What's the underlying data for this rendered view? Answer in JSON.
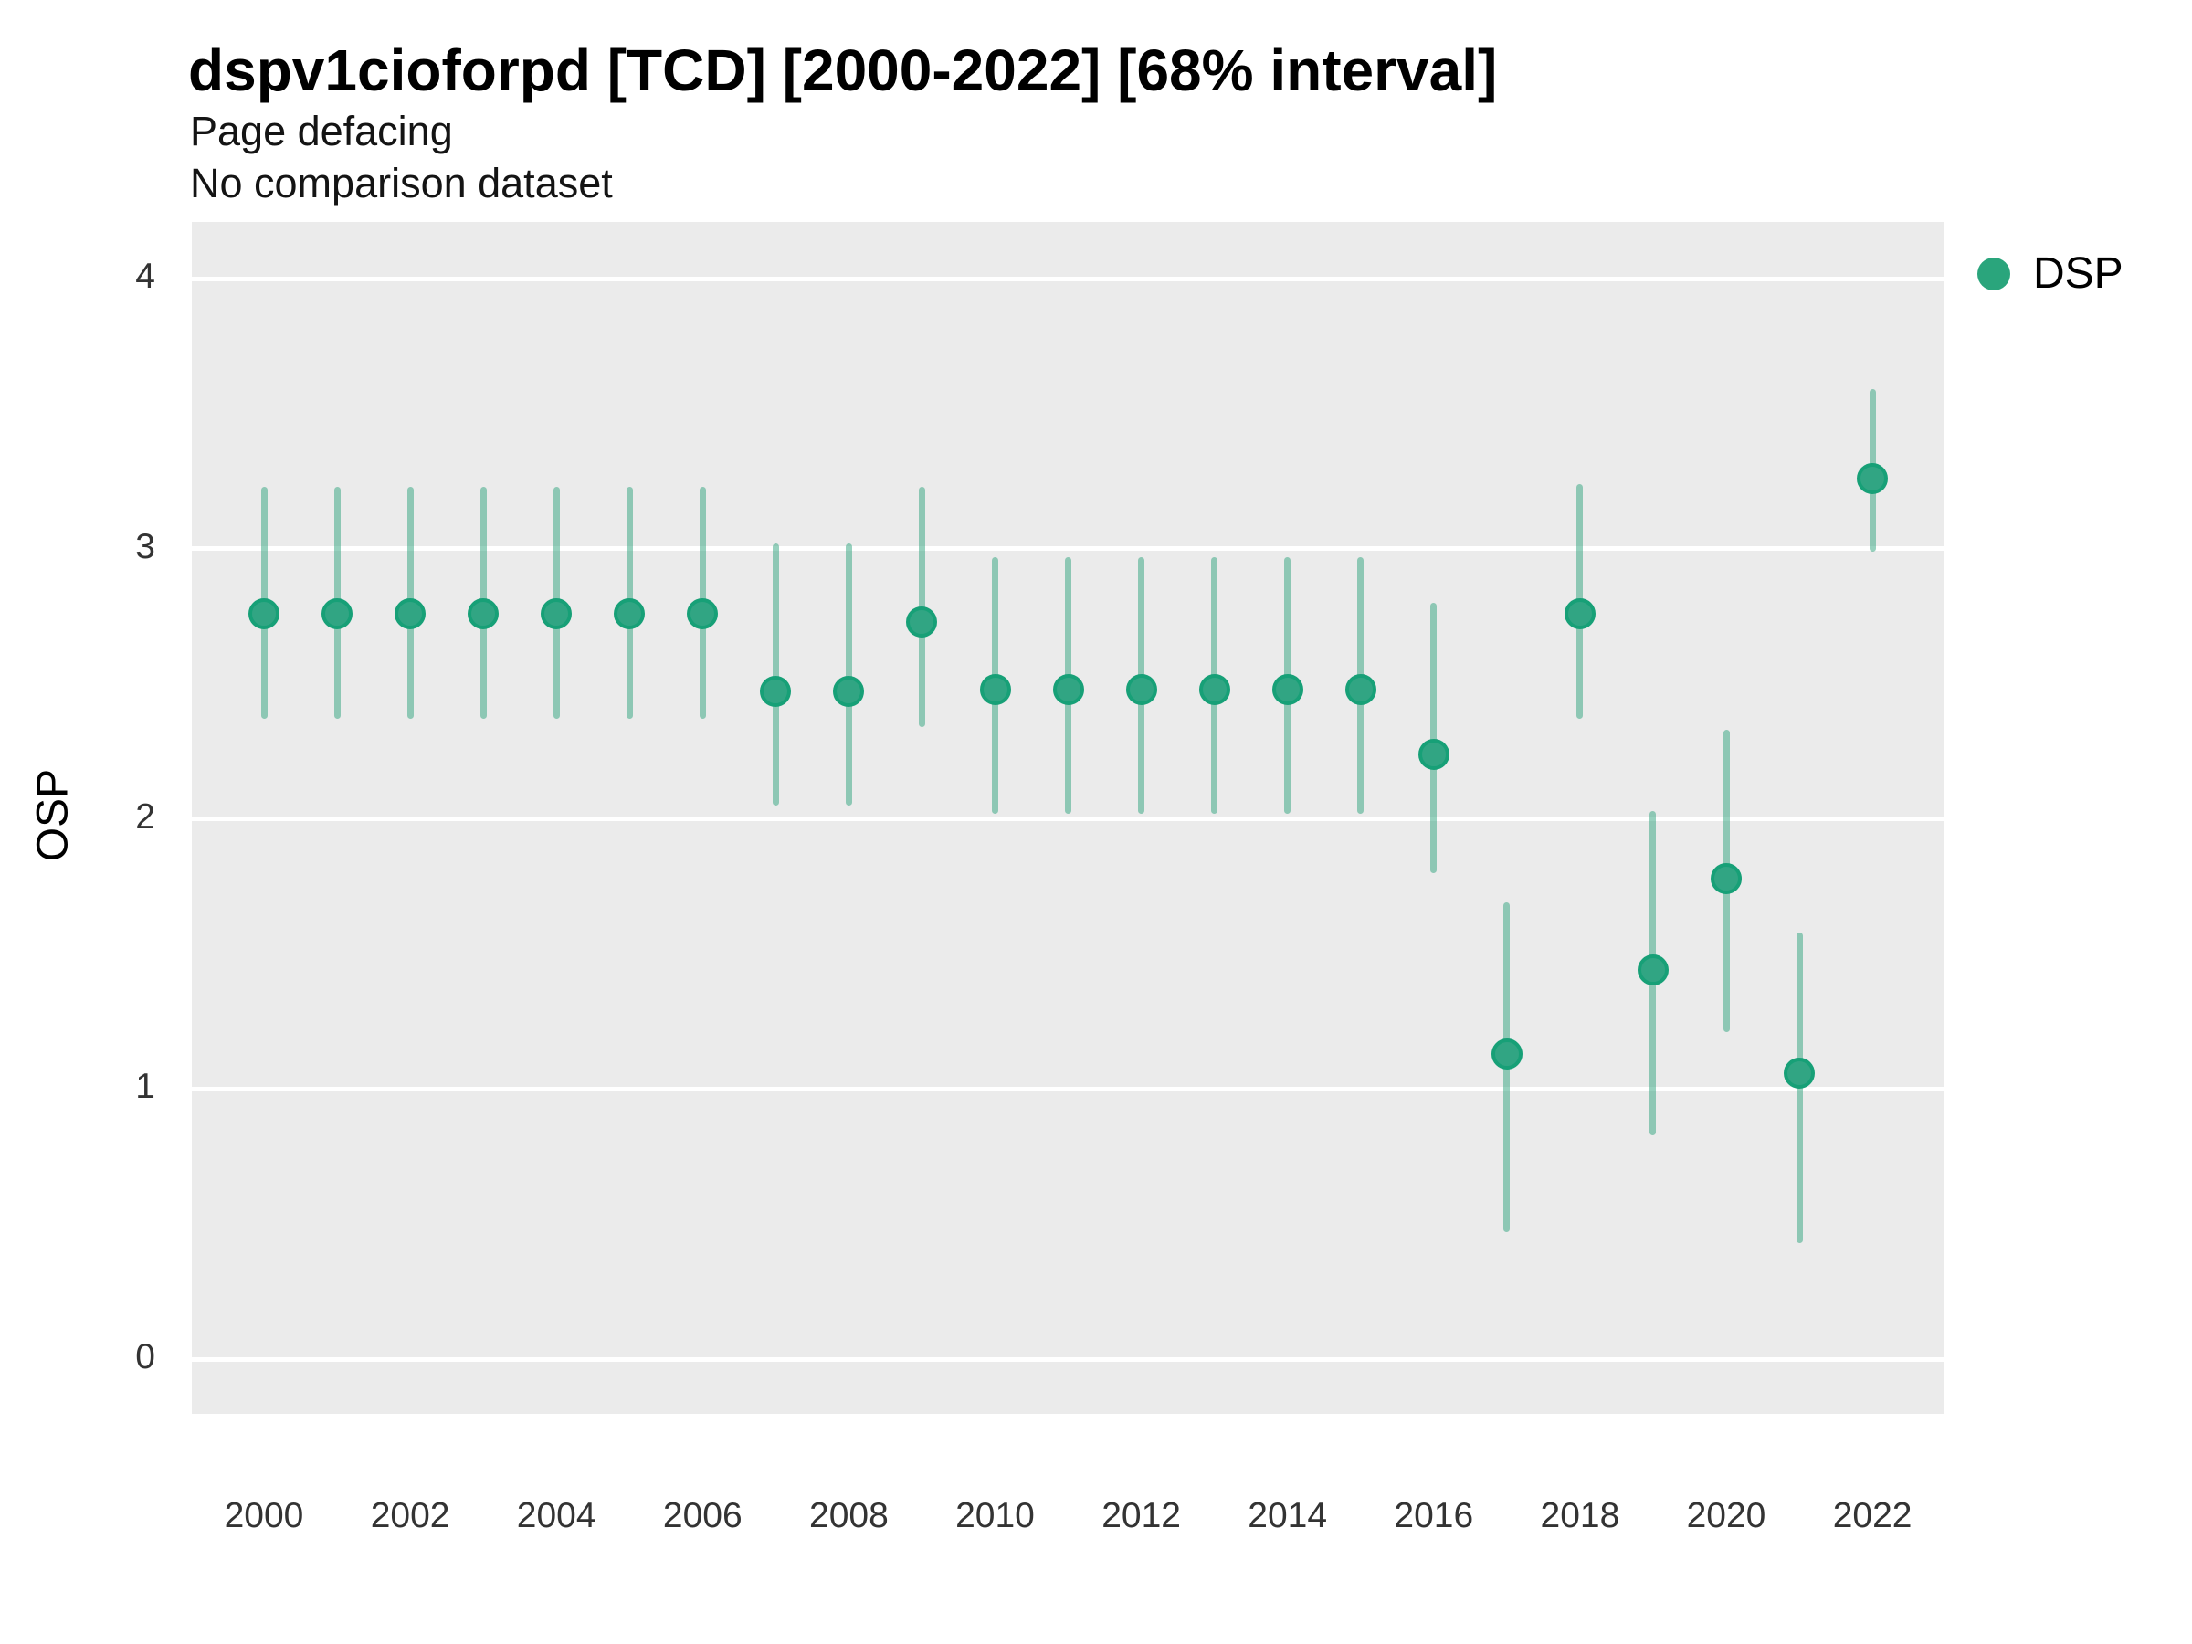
{
  "chart_data": {
    "type": "scatter",
    "title": "dspv1cioforpd [TCD] [2000-2022] [68% interval]",
    "subtitle_lines": [
      "Page defacing",
      "No comparison dataset"
    ],
    "xlabel": "",
    "ylabel": "OSP",
    "interval": "68%",
    "grid": "major-horizontal-only",
    "legend_position": "right",
    "y_ticks": [
      0,
      1,
      2,
      3,
      4
    ],
    "x_ticks": [
      2000,
      2002,
      2004,
      2006,
      2008,
      2010,
      2012,
      2014,
      2016,
      2018,
      2020,
      2022
    ],
    "ylim": [
      -0.2,
      4.2
    ],
    "xlim": [
      1999,
      2023
    ],
    "series": [
      {
        "name": "DSP",
        "points": [
          {
            "year": 2000,
            "value": 2.76,
            "low": 2.37,
            "high": 3.23
          },
          {
            "year": 2001,
            "value": 2.76,
            "low": 2.37,
            "high": 3.23
          },
          {
            "year": 2002,
            "value": 2.76,
            "low": 2.37,
            "high": 3.23
          },
          {
            "year": 2003,
            "value": 2.76,
            "low": 2.37,
            "high": 3.23
          },
          {
            "year": 2004,
            "value": 2.76,
            "low": 2.37,
            "high": 3.23
          },
          {
            "year": 2005,
            "value": 2.76,
            "low": 2.37,
            "high": 3.23
          },
          {
            "year": 2006,
            "value": 2.76,
            "low": 2.37,
            "high": 3.23
          },
          {
            "year": 2007,
            "value": 2.47,
            "low": 2.05,
            "high": 3.02
          },
          {
            "year": 2008,
            "value": 2.47,
            "low": 2.05,
            "high": 3.02
          },
          {
            "year": 2009,
            "value": 2.73,
            "low": 2.34,
            "high": 3.23
          },
          {
            "year": 2010,
            "value": 2.48,
            "low": 2.02,
            "high": 2.97
          },
          {
            "year": 2011,
            "value": 2.48,
            "low": 2.02,
            "high": 2.97
          },
          {
            "year": 2012,
            "value": 2.48,
            "low": 2.02,
            "high": 2.97
          },
          {
            "year": 2013,
            "value": 2.48,
            "low": 2.02,
            "high": 2.97
          },
          {
            "year": 2014,
            "value": 2.48,
            "low": 2.02,
            "high": 2.97
          },
          {
            "year": 2015,
            "value": 2.48,
            "low": 2.02,
            "high": 2.97
          },
          {
            "year": 2016,
            "value": 2.24,
            "low": 1.8,
            "high": 2.8
          },
          {
            "year": 2017,
            "value": 1.13,
            "low": 0.47,
            "high": 1.69
          },
          {
            "year": 2018,
            "value": 2.76,
            "low": 2.37,
            "high": 3.24
          },
          {
            "year": 2019,
            "value": 1.44,
            "low": 0.83,
            "high": 2.03
          },
          {
            "year": 2020,
            "value": 1.78,
            "low": 1.21,
            "high": 2.33
          },
          {
            "year": 2021,
            "value": 1.06,
            "low": 0.43,
            "high": 1.58
          },
          {
            "year": 2022,
            "value": 3.26,
            "low": 2.99,
            "high": 3.59
          }
        ]
      }
    ],
    "colors": {
      "panel_background": "#ebebeb",
      "gridline": "#ffffff",
      "error_bar": "rgba(47,163,126,0.5)",
      "point_fill": "#31a583",
      "point_ring": "#17a077",
      "legend_swatch": "#2aa57c",
      "title_text": "#000000",
      "tick_text": "#333333"
    }
  }
}
